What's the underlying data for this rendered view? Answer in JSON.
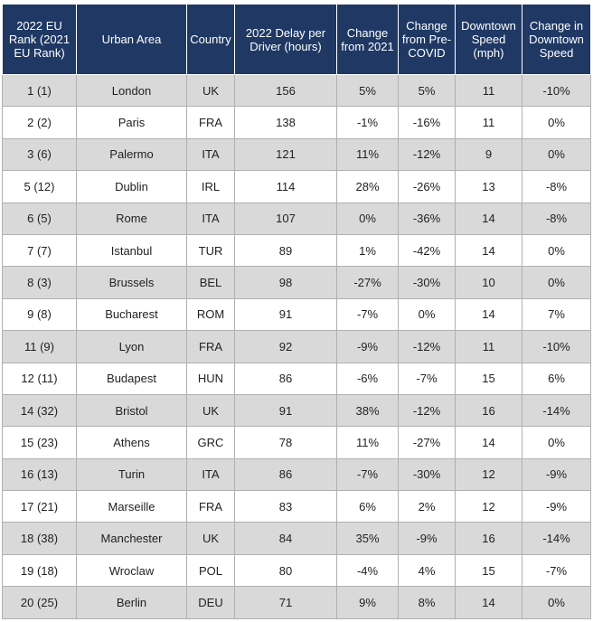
{
  "table": {
    "header": [
      "2022 EU Rank (2021 EU Rank)",
      "Urban Area",
      "Country",
      "2022 Delay per Driver (hours)",
      "Change from 2021",
      "Change from Pre-COVID",
      "Downtown Speed (mph)",
      "Change in Downtown Speed"
    ],
    "rows": [
      [
        "1 (1)",
        "London",
        "UK",
        "156",
        "5%",
        "5%",
        "11",
        "-10%"
      ],
      [
        "2 (2)",
        "Paris",
        "FRA",
        "138",
        "-1%",
        "-16%",
        "11",
        "0%"
      ],
      [
        "3 (6)",
        "Palermo",
        "ITA",
        "121",
        "11%",
        "-12%",
        "9",
        "0%"
      ],
      [
        "5 (12)",
        "Dublin",
        "IRL",
        "114",
        "28%",
        "-26%",
        "13",
        "-8%"
      ],
      [
        "6 (5)",
        "Rome",
        "ITA",
        "107",
        "0%",
        "-36%",
        "14",
        "-8%"
      ],
      [
        "7 (7)",
        "Istanbul",
        "TUR",
        "89",
        "1%",
        "-42%",
        "14",
        "0%"
      ],
      [
        "8 (3)",
        "Brussels",
        "BEL",
        "98",
        "-27%",
        "-30%",
        "10",
        "0%"
      ],
      [
        "9 (8)",
        "Bucharest",
        "ROM",
        "91",
        "-7%",
        "0%",
        "14",
        "7%"
      ],
      [
        "11 (9)",
        "Lyon",
        "FRA",
        "92",
        "-9%",
        "-12%",
        "11",
        "-10%"
      ],
      [
        "12 (11)",
        "Budapest",
        "HUN",
        "86",
        "-6%",
        "-7%",
        "15",
        "6%"
      ],
      [
        "14 (32)",
        "Bristol",
        "UK",
        "91",
        "38%",
        "-12%",
        "16",
        "-14%"
      ],
      [
        "15 (23)",
        "Athens",
        "GRC",
        "78",
        "11%",
        "-27%",
        "14",
        "0%"
      ],
      [
        "16 (13)",
        "Turin",
        "ITA",
        "86",
        "-7%",
        "-30%",
        "12",
        "-9%"
      ],
      [
        "17 (21)",
        "Marseille",
        "FRA",
        "83",
        "6%",
        "2%",
        "12",
        "-9%"
      ],
      [
        "18 (38)",
        "Manchester",
        "UK",
        "84",
        "35%",
        "-9%",
        "16",
        "-14%"
      ],
      [
        "19 (18)",
        "Wroclaw",
        "POL",
        "80",
        "-4%",
        "4%",
        "15",
        "-7%"
      ],
      [
        "20 (25)",
        "Berlin",
        "DEU",
        "71",
        "9%",
        "8%",
        "14",
        "0%"
      ]
    ]
  }
}
